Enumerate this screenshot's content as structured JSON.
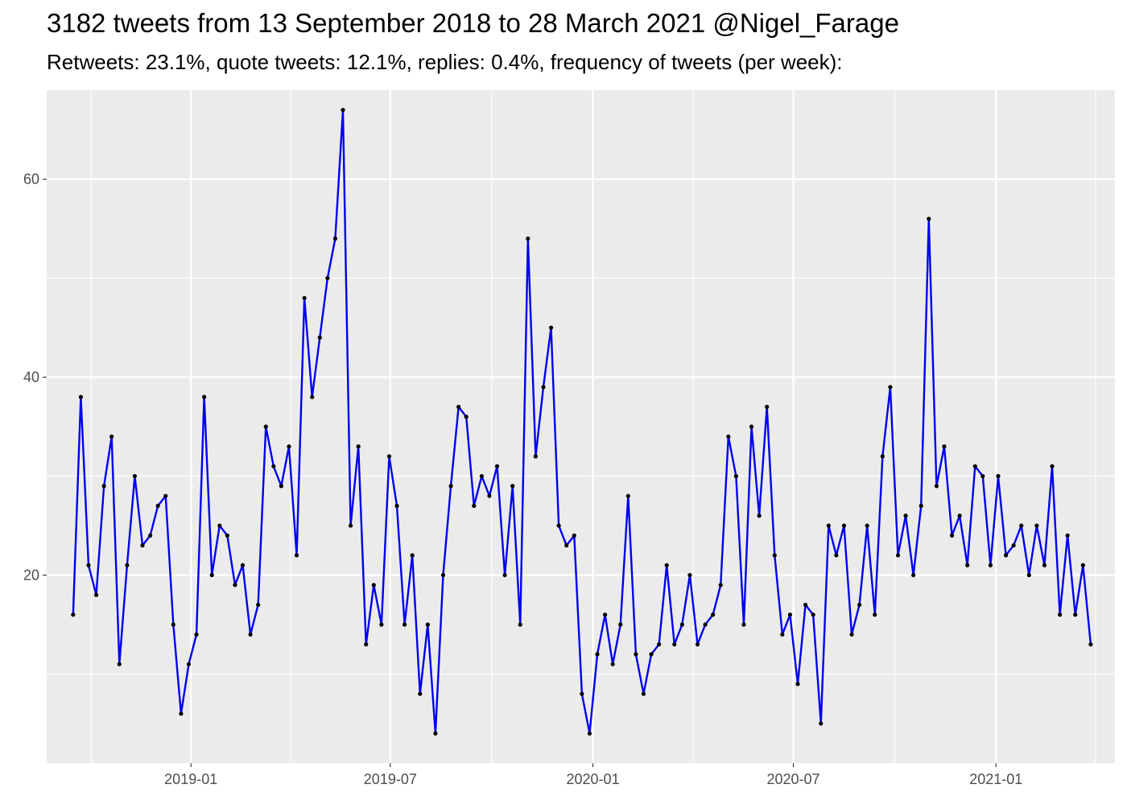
{
  "title": "3182 tweets from 13 September 2018 to 28 March 2021 @Nigel_Farage",
  "subtitle": "Retweets: 23.1%, quote tweets: 12.1%, replies: 0.4%, frequency of tweets (per week):",
  "colors": {
    "panel": "#ebebeb",
    "grid": "#ffffff",
    "line": "#0000ee",
    "point": "#000000"
  },
  "chart_data": {
    "type": "line",
    "title": "3182 tweets from 13 September 2018 to 28 March 2021 @Nigel_Farage",
    "subtitle": "Retweets: 23.1%, quote tweets: 12.1%, replies: 0.4%, frequency of tweets (per week):",
    "xlabel": "",
    "ylabel": "",
    "x_start": "2018-09-16",
    "x_step_days": 7,
    "xlim": [
      "2018-08-23",
      "2021-04-19"
    ],
    "ylim": [
      1,
      69
    ],
    "x_ticks": [
      "2019-01",
      "2019-07",
      "2020-01",
      "2020-07",
      "2021-01"
    ],
    "y_ticks": [
      20,
      40,
      60
    ],
    "grid": true,
    "legend": "none",
    "series": [
      {
        "values": [
          16,
          38,
          21,
          18,
          29,
          34,
          11,
          21,
          30,
          23,
          24,
          27,
          28,
          15,
          6,
          11,
          14,
          38,
          20,
          25,
          24,
          19,
          21,
          14,
          17,
          35,
          31,
          29,
          33,
          22,
          48,
          38,
          44,
          50,
          54,
          67,
          25,
          33,
          13,
          19,
          15,
          32,
          27,
          15,
          22,
          8,
          15,
          4,
          20,
          29,
          37,
          36,
          27,
          30,
          28,
          31,
          20,
          29,
          15,
          54,
          32,
          39,
          45,
          25,
          23,
          24,
          8,
          4,
          12,
          16,
          11,
          15,
          28,
          12,
          8,
          12,
          13,
          21,
          13,
          15,
          20,
          13,
          15,
          16,
          19,
          34,
          30,
          15,
          35,
          26,
          37,
          22,
          14,
          16,
          9,
          17,
          16,
          5,
          25,
          22,
          25,
          14,
          17,
          25,
          16,
          32,
          39,
          22,
          26,
          20,
          27,
          56,
          29,
          33,
          24,
          26,
          21,
          31,
          30,
          21,
          30,
          22,
          23,
          25,
          20,
          25,
          21,
          31,
          16,
          24,
          16,
          21,
          13
        ]
      }
    ]
  }
}
